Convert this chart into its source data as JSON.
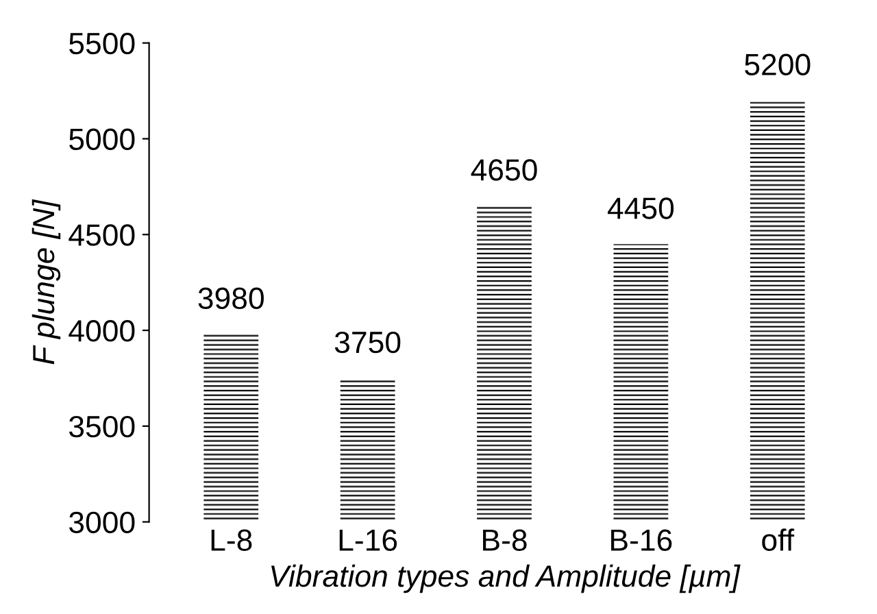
{
  "chart_data": {
    "type": "bar",
    "xlabel": "Vibration types and Amplitude [µm]",
    "ylabel": "F plunge [N]",
    "categories": [
      "L-8",
      "L-16",
      "B-8",
      "B-16",
      "off"
    ],
    "values": [
      3980,
      3750,
      4650,
      4450,
      5200
    ],
    "color": "#000000",
    "ylim": [
      3000,
      5500
    ],
    "yticks": [
      3000,
      3500,
      4000,
      4500,
      5000,
      5500
    ],
    "data_labels": true,
    "grid": false,
    "legend": false
  }
}
